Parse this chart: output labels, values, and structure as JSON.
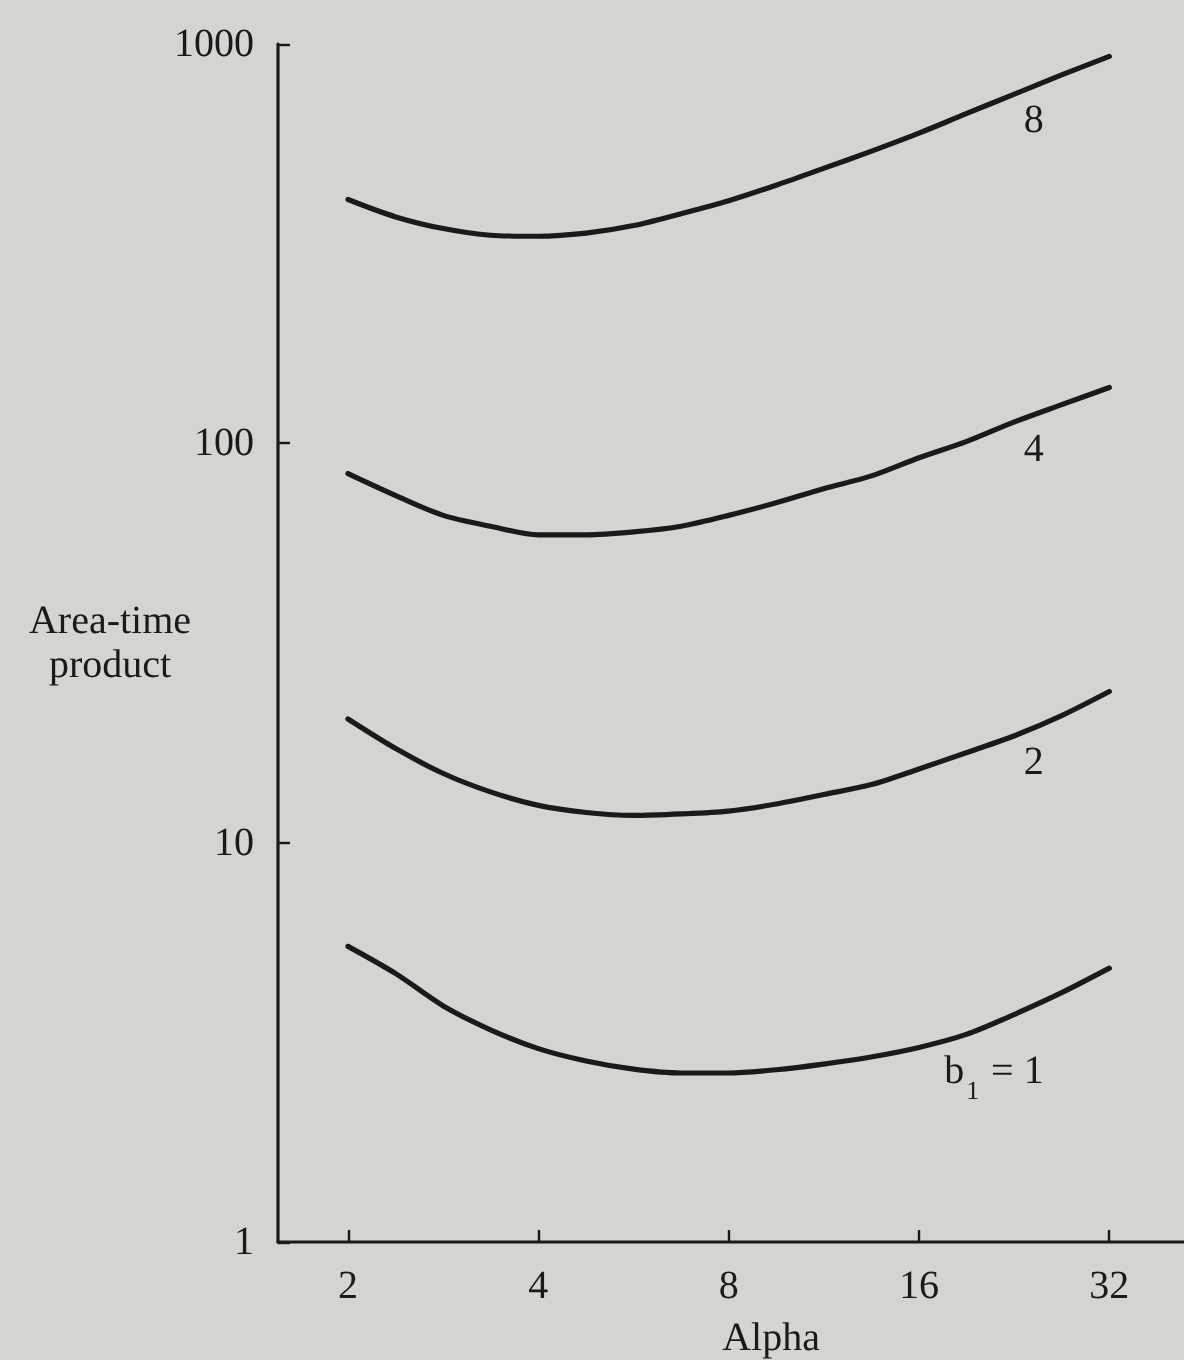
{
  "chart_data": {
    "type": "line",
    "xlabel": "Alpha",
    "ylabel": "Area-time product",
    "log": "xy",
    "marker": "none",
    "xlim": [
      1.55,
      42
    ],
    "xticks": [
      2,
      4,
      8,
      16,
      32
    ],
    "ylim": [
      1,
      1000
    ],
    "yticks": [
      1,
      10,
      100,
      1000
    ],
    "x": [
      2,
      2.38,
      2.83,
      3.36,
      4,
      4.76,
      5.66,
      6.73,
      8,
      9.51,
      11.3,
      13.5,
      16,
      19,
      22.6,
      26.9,
      32
    ],
    "series": [
      {
        "name": "b$_{1}$ = 1",
        "color": "#1a1a1a",
        "values": [
          5.5,
          4.7,
          3.9,
          3.4,
          3.05,
          2.84,
          2.71,
          2.65,
          2.65,
          2.7,
          2.79,
          2.91,
          3.07,
          3.31,
          3.71,
          4.21,
          4.85
        ]
      },
      {
        "name": "2",
        "color": "#1a1a1a",
        "values": [
          20.4,
          17.2,
          14.9,
          13.4,
          12.4,
          11.9,
          11.7,
          11.8,
          12,
          12.5,
          13.2,
          14,
          15.3,
          16.8,
          18.5,
          20.8,
          23.9
        ]
      },
      {
        "name": "4",
        "color": "#1a1a1a",
        "values": [
          84,
          74,
          66,
          62,
          59,
          59,
          60,
          62,
          66,
          71,
          77,
          83,
          92,
          101,
          113,
          125,
          138
        ]
      },
      {
        "name": "8",
        "color": "#1a1a1a",
        "values": [
          408,
          369,
          345,
          332,
          330,
          336,
          351,
          376,
          405,
          443,
          488,
          540,
          598,
          669,
          748,
          837,
          931
        ]
      }
    ]
  }
}
